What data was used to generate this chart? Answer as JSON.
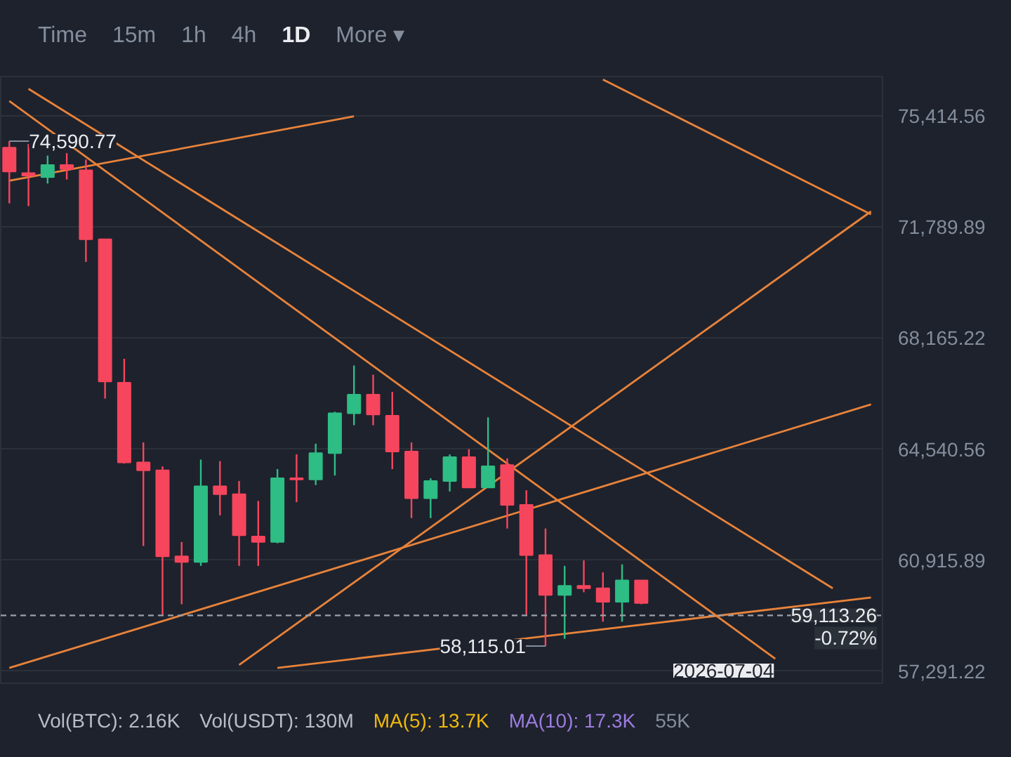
{
  "chart_data": {
    "type": "candlestick",
    "categories": [
      null,
      null,
      null,
      null,
      null,
      null,
      null,
      null,
      null,
      null,
      null,
      null,
      null,
      null,
      null,
      null,
      null,
      null,
      null,
      null,
      null,
      null,
      null,
      null,
      null,
      null,
      null,
      null,
      null,
      null,
      null,
      null,
      null,
      null,
      null,
      null,
      null,
      null,
      null,
      null,
      null,
      null,
      null,
      null,
      null,
      null
    ],
    "ohlc": [
      [
        74380,
        74590.77,
        72560,
        73600
      ],
      [
        73550,
        74500,
        72470,
        73470
      ],
      [
        73420,
        74120,
        73210,
        73810
      ],
      [
        73810,
        74200,
        73340,
        73680
      ],
      [
        73640,
        73990,
        70650,
        71390
      ],
      [
        71390,
        71390,
        66190,
        66750
      ],
      [
        66710,
        67490,
        64070,
        64110
      ],
      [
        64110,
        64760,
        61380,
        63850
      ],
      [
        63850,
        63980,
        59130,
        61040
      ],
      [
        61040,
        61510,
        59480,
        60860
      ],
      [
        60860,
        64200,
        60730,
        63330
      ],
      [
        63330,
        64150,
        62380,
        63070
      ],
      [
        63070,
        63500,
        60730,
        61730
      ],
      [
        61690,
        62850,
        60730,
        61510
      ],
      [
        61510,
        63890,
        61470,
        63590
      ],
      [
        63590,
        64370,
        62810,
        63550
      ],
      [
        63550,
        64720,
        63370,
        64410
      ],
      [
        64410,
        65760,
        63680,
        65710
      ],
      [
        65710,
        67270,
        65320,
        66320
      ],
      [
        66320,
        66970,
        65320,
        65670
      ],
      [
        65630,
        66410,
        63890,
        64460
      ],
      [
        64460,
        64760,
        62290,
        62940
      ],
      [
        62940,
        63590,
        62290,
        63500
      ],
      [
        63500,
        64370,
        63160,
        64280
      ],
      [
        64280,
        64540,
        63290,
        63290
      ],
      [
        63290,
        65580,
        63290,
        63980
      ],
      [
        64020,
        64240,
        61950,
        62720
      ],
      [
        62720,
        63200,
        59130,
        61080
      ],
      [
        61080,
        61950,
        58115.01,
        59780
      ],
      [
        59780,
        60730,
        58350,
        60080
      ],
      [
        60080,
        60910,
        59870,
        60000
      ],
      [
        60000,
        60520,
        58910,
        59560
      ],
      [
        59560,
        60780,
        58910,
        60260
      ],
      [
        60260,
        60260,
        59480,
        59520
      ],
      null,
      null,
      null,
      null,
      null,
      null,
      null,
      null,
      null,
      null,
      null,
      null
    ],
    "series": [
      {
        "type": "line",
        "color": "#e8833a",
        "values": [
          73300,
          null,
          null,
          null,
          null,
          null,
          null,
          null,
          null,
          null,
          null,
          null,
          null,
          null,
          null,
          null,
          null,
          null,
          75400,
          null,
          null,
          null,
          null,
          null,
          null,
          null,
          null,
          null,
          null,
          null,
          null,
          null,
          null,
          null,
          null,
          null,
          null,
          null,
          null,
          null,
          null,
          null,
          null,
          null,
          null,
          null
        ]
      },
      {
        "type": "line",
        "color": "#e8833a",
        "values": [
          75900,
          null,
          null,
          null,
          null,
          null,
          null,
          null,
          null,
          null,
          null,
          null,
          null,
          null,
          null,
          null,
          null,
          null,
          null,
          null,
          null,
          null,
          null,
          null,
          null,
          null,
          null,
          null,
          null,
          null,
          null,
          null,
          null,
          null,
          null,
          null,
          null,
          null,
          null,
          null,
          57700,
          null,
          null,
          null,
          null,
          null
        ]
      },
      {
        "type": "line",
        "color": "#e8833a",
        "values": [
          null,
          76300,
          null,
          null,
          null,
          null,
          null,
          null,
          null,
          null,
          null,
          null,
          null,
          null,
          null,
          null,
          null,
          null,
          null,
          null,
          null,
          null,
          null,
          null,
          null,
          null,
          null,
          null,
          null,
          null,
          null,
          null,
          null,
          null,
          null,
          null,
          null,
          null,
          null,
          null,
          null,
          null,
          null,
          60000,
          null,
          null
        ]
      },
      {
        "type": "line",
        "color": "#e8833a",
        "values": [
          null,
          null,
          null,
          null,
          null,
          null,
          null,
          null,
          null,
          null,
          null,
          null,
          null,
          null,
          null,
          null,
          null,
          null,
          null,
          null,
          null,
          null,
          null,
          null,
          null,
          null,
          null,
          null,
          null,
          null,
          null,
          76600,
          null,
          null,
          null,
          null,
          null,
          null,
          null,
          null,
          null,
          null,
          null,
          null,
          null,
          72200
        ]
      },
      {
        "type": "line",
        "color": "#e8833a",
        "values": [
          null,
          null,
          null,
          null,
          null,
          null,
          null,
          null,
          null,
          null,
          null,
          null,
          57500,
          null,
          null,
          null,
          null,
          null,
          null,
          null,
          null,
          null,
          null,
          null,
          null,
          null,
          null,
          null,
          null,
          null,
          null,
          null,
          null,
          null,
          null,
          null,
          null,
          null,
          null,
          null,
          null,
          null,
          null,
          null,
          null,
          72300
        ]
      },
      {
        "type": "line",
        "color": "#e8833a",
        "values": [
          57400,
          null,
          null,
          null,
          null,
          null,
          null,
          null,
          null,
          null,
          null,
          null,
          null,
          null,
          null,
          null,
          null,
          null,
          null,
          null,
          null,
          null,
          null,
          null,
          null,
          null,
          null,
          null,
          null,
          null,
          null,
          null,
          null,
          null,
          null,
          null,
          null,
          null,
          null,
          null,
          null,
          null,
          null,
          null,
          null,
          66000
        ]
      },
      {
        "type": "line",
        "color": "#e8833a",
        "values": [
          null,
          null,
          null,
          null,
          null,
          null,
          null,
          null,
          null,
          null,
          null,
          null,
          null,
          null,
          57400,
          null,
          null,
          null,
          null,
          null,
          null,
          null,
          null,
          null,
          null,
          null,
          null,
          null,
          null,
          null,
          null,
          null,
          null,
          null,
          null,
          null,
          null,
          null,
          null,
          null,
          null,
          null,
          null,
          null,
          null,
          59700
        ]
      }
    ],
    "ylim": [
      56900,
      76700
    ],
    "yticks": [
      {
        "value": 57291.22,
        "label": "57,291.22"
      },
      {
        "value": 60915.89,
        "label": "60,915.89"
      },
      {
        "value": 64540.56,
        "label": "64,540.56"
      },
      {
        "value": 68165.22,
        "label": "68,165.22"
      },
      {
        "value": 71789.89,
        "label": "71,789.89"
      },
      {
        "value": 75414.56,
        "label": "75,414.56"
      }
    ],
    "grid": "y",
    "tick_labels": "y",
    "ref_lines": [
      {
        "axis": "y",
        "value": 59113.26,
        "label": "59,113.26",
        "line_style": "dashed",
        "color": "#9aa0a8"
      }
    ],
    "annotations": [
      {
        "text": "74,590.77",
        "y": 74590.77
      },
      {
        "text": "58,115.01",
        "y": 58115.01
      },
      "2026-07-04",
      "-0.72%",
      "Time",
      "15m",
      "1h",
      "4h",
      "1D",
      "More ▾",
      "Vol(BTC): 2.16K",
      "Vol(USDT): 130M",
      "MA(5): 13.7K",
      "MA(10): 17.3K",
      "55K"
    ]
  }
}
